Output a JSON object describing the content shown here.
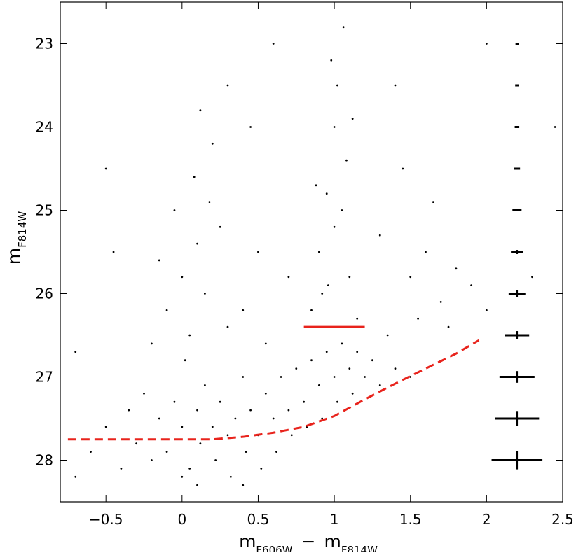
{
  "chart_data": {
    "type": "scatter",
    "x_label": [
      "m",
      "F606W",
      "−",
      "m",
      "F814W"
    ],
    "y_label": [
      "m",
      "F814W"
    ],
    "xlim": [
      -0.8,
      2.5
    ],
    "ylim": [
      28.5,
      22.5
    ],
    "y_inverted": true,
    "xticks": [
      {
        "value": -0.5,
        "label": "−0.5"
      },
      0,
      0.5,
      1,
      1.5,
      2,
      2.5
    ],
    "yticks": [
      23,
      24,
      25,
      26,
      27,
      28
    ],
    "color": "#000000",
    "x": [
      -0.6,
      -0.5,
      -0.4,
      -0.35,
      -0.3,
      -0.25,
      -0.2,
      -0.15,
      -0.1,
      -0.05,
      0,
      0.05,
      0.1,
      0.12,
      0.15,
      0.2,
      0.22,
      0.25,
      0.3,
      0.32,
      0.35,
      0.4,
      0.42,
      0.45,
      0.5,
      0.52,
      0.55,
      0.6,
      0.62,
      0.65,
      0.7,
      0.72,
      0.75,
      0.8,
      0.82,
      0.85,
      0.9,
      0.92,
      0.95,
      1.0,
      1.02,
      1.05,
      1.1,
      1.12,
      1.15,
      1.2,
      1.25,
      1.3,
      1.35,
      1.4,
      1.5,
      0.1,
      0.4,
      0.0,
      -0.7,
      -0.1,
      0,
      0.05,
      0.1,
      -0.05,
      0.08,
      0.15,
      0.2,
      -0.15,
      0.12,
      0.25,
      0.02,
      0.3,
      -0.2,
      0.18,
      0.85,
      0.9,
      0.95,
      1.0,
      1.02,
      1.05,
      1.08,
      0.98,
      1.1,
      0.92,
      1.0,
      1.12,
      0.88,
      1.15,
      1.06,
      0.96,
      1.3,
      1.5,
      1.6,
      1.7,
      1.8,
      1.9,
      2.0,
      1.45,
      1.55,
      1.65,
      2.3,
      2.45,
      1.75,
      -0.5,
      -0.45,
      0.45,
      0.5,
      0.6,
      0.4,
      0.7,
      0.3,
      1.4,
      2.0,
      -0.7,
      0.55
    ],
    "y": [
      27.9,
      27.6,
      28.1,
      27.4,
      27.8,
      27.2,
      28.0,
      27.5,
      27.9,
      27.3,
      27.6,
      28.1,
      27.4,
      27.8,
      27.1,
      27.6,
      28.0,
      27.3,
      27.7,
      28.2,
      27.5,
      27.0,
      27.9,
      27.4,
      27.7,
      28.1,
      27.2,
      27.5,
      27.9,
      27.0,
      27.4,
      27.7,
      26.9,
      27.3,
      27.6,
      26.8,
      27.1,
      27.5,
      26.7,
      27.0,
      27.3,
      26.6,
      26.9,
      27.2,
      26.7,
      27.0,
      26.8,
      27.1,
      26.5,
      26.9,
      27.0,
      28.3,
      28.3,
      28.2,
      28.2,
      26.2,
      25.8,
      26.5,
      25.4,
      25.0,
      24.6,
      26.0,
      24.2,
      25.6,
      23.8,
      25.2,
      26.8,
      26.4,
      26.6,
      24.9,
      26.2,
      25.5,
      24.8,
      24.0,
      23.5,
      25.0,
      24.4,
      23.2,
      25.8,
      26.0,
      25.2,
      23.9,
      24.7,
      26.3,
      22.8,
      25.9,
      25.3,
      25.8,
      25.5,
      26.1,
      25.7,
      25.9,
      26.2,
      24.5,
      26.3,
      24.9,
      25.8,
      24.0,
      26.4,
      24.5,
      25.5,
      24.0,
      25.5,
      23.0,
      26.2,
      25.8,
      23.5,
      23.5,
      23.0,
      26.7,
      26.6
    ],
    "limit_line": {
      "color": "#e8231c",
      "x": [
        -0.75,
        0,
        0.2,
        0.4,
        0.6,
        0.8,
        1.0,
        1.2,
        1.4,
        1.6,
        1.8,
        1.95
      ],
      "y": [
        27.75,
        27.75,
        27.75,
        27.72,
        27.67,
        27.6,
        27.47,
        27.27,
        27.08,
        26.9,
        26.72,
        26.56
      ]
    },
    "segment": {
      "color": "#e8231c",
      "x": [
        0.8,
        1.2
      ],
      "y": [
        26.4,
        26.4
      ]
    },
    "errorbars": {
      "x": 2.2,
      "y": [
        23,
        23.5,
        24,
        24.5,
        25,
        25.5,
        26,
        26.5,
        27,
        27.5,
        28
      ],
      "xerr": [
        0.01,
        0.012,
        0.015,
        0.02,
        0.03,
        0.04,
        0.055,
        0.08,
        0.115,
        0.145,
        0.167
      ],
      "yerr": [
        0.005,
        0.005,
        0.006,
        0.008,
        0.01,
        0.025,
        0.04,
        0.05,
        0.07,
        0.09,
        0.11
      ]
    }
  }
}
